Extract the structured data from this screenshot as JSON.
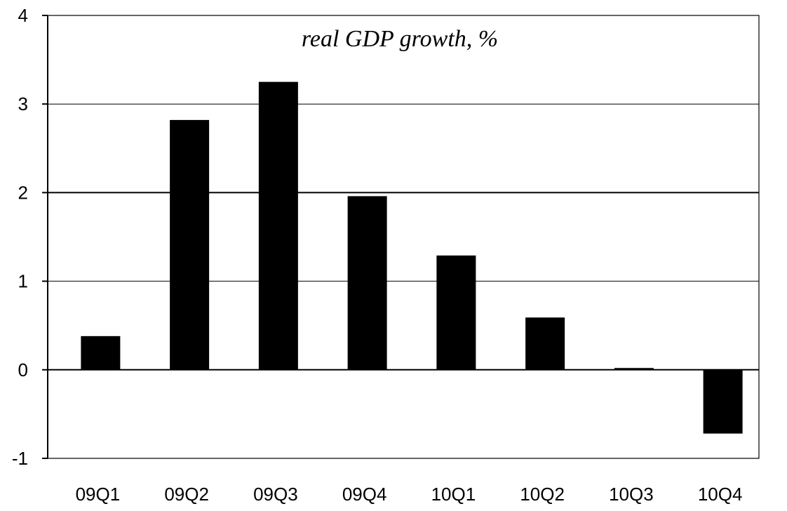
{
  "chart_data": {
    "type": "bar",
    "title": "real GDP growth, %",
    "xlabel": "",
    "ylabel": "",
    "categories": [
      "09Q1",
      "09Q2",
      "09Q3",
      "09Q4",
      "10Q1",
      "10Q2",
      "10Q3",
      "10Q4"
    ],
    "values": [
      0.38,
      2.82,
      3.25,
      1.96,
      1.29,
      0.59,
      0.02,
      -0.72
    ],
    "ylim": [
      -1,
      4
    ],
    "yticks": [
      -1,
      0,
      1,
      2,
      3,
      4
    ],
    "grid": true,
    "legend": "none",
    "colors": {
      "bar": "#000000",
      "grid": "#000000",
      "background": "#ffffff"
    }
  }
}
